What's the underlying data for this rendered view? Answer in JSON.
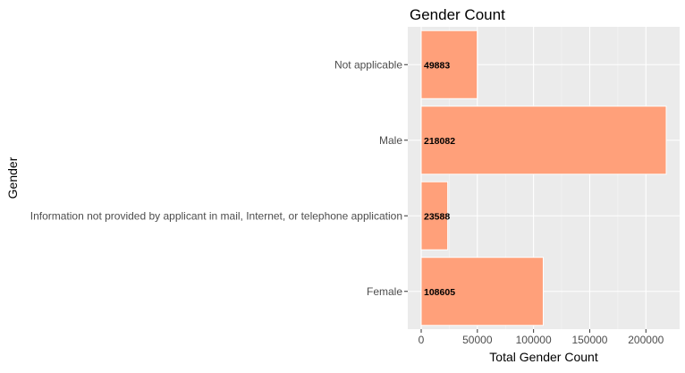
{
  "chart_data": {
    "type": "bar",
    "orientation": "horizontal",
    "title": "Gender Count",
    "xlabel": "Total Gender Count",
    "ylabel": "Gender",
    "categories": [
      "Female",
      "Information not provided by applicant in mail, Internet, or telephone application",
      "Male",
      "Not applicable"
    ],
    "values": [
      108605,
      23588,
      218082,
      49883
    ],
    "data_labels": [
      "108605",
      "23588",
      "218082",
      "49883"
    ],
    "x_ticks": [
      0,
      50000,
      100000,
      150000,
      200000
    ],
    "x_tick_labels": [
      "0",
      "50000",
      "100000",
      "150000",
      "200000"
    ],
    "xlim": [
      0,
      228986
    ],
    "grid": true,
    "legend": "none",
    "colors": {
      "bar_fill": "#FFA07A",
      "bar_stroke": "#ffffff",
      "panel_bg": "#EBEBEB",
      "grid_major": "#ffffff",
      "tick_text": "#4D4D4D",
      "title_text": "#000000",
      "data_label_text": "#000000"
    }
  }
}
